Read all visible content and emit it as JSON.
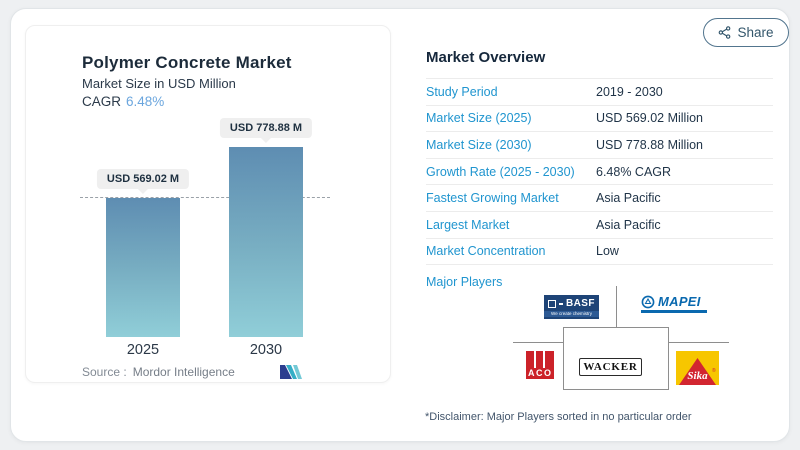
{
  "share": {
    "label": "Share"
  },
  "chart_card": {
    "title": "Polymer Concrete Market",
    "subtitle": "Market Size in USD Million",
    "cagr_label": "CAGR",
    "cagr_value": "6.48%",
    "source_label": "Source :",
    "source_value": "Mordor Intelligence"
  },
  "chart_data": {
    "type": "bar",
    "categories": [
      "2025",
      "2030"
    ],
    "values": [
      569.02,
      778.88
    ],
    "bar_labels": [
      "USD 569.02 M",
      "USD 778.88 M"
    ],
    "title": "Polymer Concrete Market",
    "ylabel": "Market Size in USD Million",
    "ylim": [
      0,
      820
    ],
    "reference_line": 569.02,
    "grid": false,
    "legend": "none",
    "colors": {
      "bar_top": "#5e8db2",
      "bar_bottom": "#90ced8"
    }
  },
  "overview": {
    "title": "Market Overview",
    "rows": [
      {
        "label": "Study Period",
        "value": "2019 - 2030"
      },
      {
        "label": "Market Size (2025)",
        "value": "USD 569.02 Million"
      },
      {
        "label": "Market Size (2030)",
        "value": "USD 778.88 Million"
      },
      {
        "label": "Growth Rate (2025 - 2030)",
        "value": "6.48% CAGR"
      },
      {
        "label": "Fastest Growing Market",
        "value": "Asia Pacific"
      },
      {
        "label": "Largest Market",
        "value": "Asia Pacific"
      },
      {
        "label": "Market Concentration",
        "value": "Low"
      }
    ],
    "major_players_label": "Major Players",
    "players": [
      {
        "name": "BASF",
        "tagline": "We create chemistry"
      },
      {
        "name": "MAPEI"
      },
      {
        "name": "ACO"
      },
      {
        "name": "WACKER"
      },
      {
        "name": "Sika"
      }
    ],
    "disclaimer": "*Disclaimer: Major Players sorted in no particular order"
  },
  "colors": {
    "accent_blue": "#2095cf",
    "cagr_blue": "#6ba6de",
    "navy_text": "#1e3248"
  }
}
